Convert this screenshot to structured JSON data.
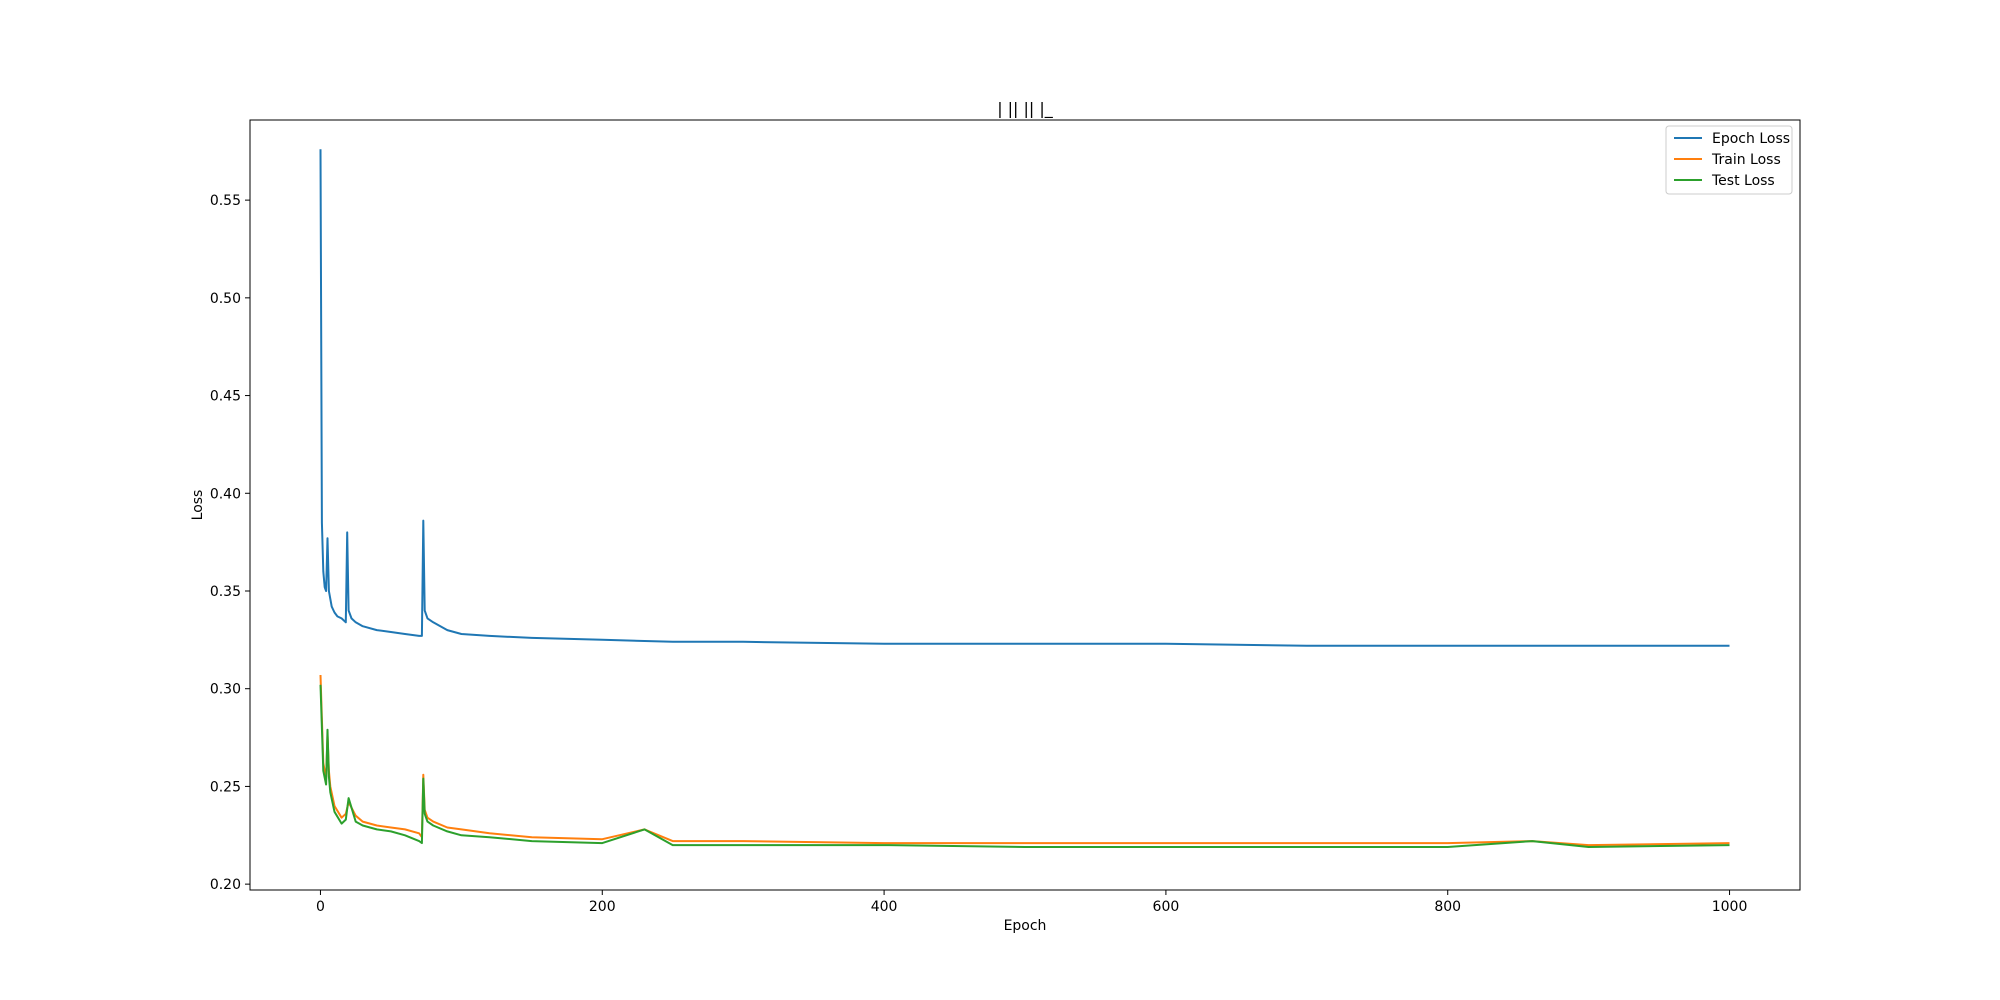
{
  "chart_data": {
    "type": "line",
    "title": "| || || |_",
    "xlabel": "Epoch",
    "ylabel": "Loss",
    "xlim": [
      -50,
      1050
    ],
    "ylim": [
      0.197,
      0.591
    ],
    "xticks": [
      0,
      200,
      400,
      600,
      800,
      1000
    ],
    "yticks": [
      0.2,
      0.25,
      0.3,
      0.35,
      0.4,
      0.45,
      0.5,
      0.55
    ],
    "xtick_labels": [
      "0",
      "200",
      "400",
      "600",
      "800",
      "1000"
    ],
    "ytick_labels": [
      "0.20",
      "0.25",
      "0.30",
      "0.35",
      "0.40",
      "0.45",
      "0.50",
      "0.55"
    ],
    "grid": false,
    "legend_position": "top-right",
    "series": [
      {
        "name": "Epoch Loss",
        "color": "#1f77b4",
        "x": [
          0,
          1,
          2,
          3,
          4,
          5,
          6,
          7,
          8,
          10,
          12,
          15,
          18,
          19,
          20,
          22,
          25,
          30,
          40,
          50,
          60,
          70,
          72,
          73,
          74,
          76,
          80,
          90,
          100,
          120,
          150,
          200,
          250,
          300,
          400,
          500,
          600,
          700,
          800,
          900,
          1000
        ],
        "values": [
          0.576,
          0.385,
          0.36,
          0.352,
          0.35,
          0.377,
          0.35,
          0.346,
          0.342,
          0.339,
          0.337,
          0.336,
          0.334,
          0.38,
          0.34,
          0.336,
          0.334,
          0.332,
          0.33,
          0.329,
          0.328,
          0.327,
          0.327,
          0.386,
          0.34,
          0.336,
          0.334,
          0.33,
          0.328,
          0.327,
          0.326,
          0.325,
          0.324,
          0.324,
          0.323,
          0.323,
          0.323,
          0.322,
          0.322,
          0.322,
          0.322
        ]
      },
      {
        "name": "Train Loss",
        "color": "#ff7f0e",
        "x": [
          0,
          2,
          4,
          5,
          6,
          7,
          10,
          15,
          18,
          20,
          25,
          30,
          40,
          50,
          60,
          70,
          72,
          73,
          74,
          76,
          80,
          90,
          100,
          120,
          150,
          200,
          230,
          250,
          300,
          400,
          500,
          600,
          700,
          800,
          860,
          900,
          1000
        ],
        "values": [
          0.307,
          0.262,
          0.254,
          0.276,
          0.258,
          0.25,
          0.24,
          0.234,
          0.236,
          0.242,
          0.235,
          0.232,
          0.23,
          0.229,
          0.228,
          0.226,
          0.224,
          0.256,
          0.238,
          0.234,
          0.232,
          0.229,
          0.228,
          0.226,
          0.224,
          0.223,
          0.228,
          0.222,
          0.222,
          0.221,
          0.221,
          0.221,
          0.221,
          0.221,
          0.222,
          0.22,
          0.221
        ]
      },
      {
        "name": "Test Loss",
        "color": "#2ca02c",
        "x": [
          0,
          2,
          4,
          5,
          6,
          7,
          10,
          15,
          18,
          20,
          25,
          30,
          40,
          50,
          60,
          70,
          72,
          73,
          74,
          76,
          80,
          90,
          100,
          120,
          150,
          200,
          230,
          250,
          300,
          400,
          500,
          600,
          700,
          800,
          860,
          900,
          1000
        ],
        "values": [
          0.302,
          0.258,
          0.251,
          0.279,
          0.255,
          0.247,
          0.237,
          0.231,
          0.233,
          0.244,
          0.232,
          0.23,
          0.228,
          0.227,
          0.225,
          0.222,
          0.221,
          0.254,
          0.236,
          0.232,
          0.23,
          0.227,
          0.225,
          0.224,
          0.222,
          0.221,
          0.228,
          0.22,
          0.22,
          0.22,
          0.219,
          0.219,
          0.219,
          0.219,
          0.222,
          0.219,
          0.22
        ]
      }
    ]
  }
}
